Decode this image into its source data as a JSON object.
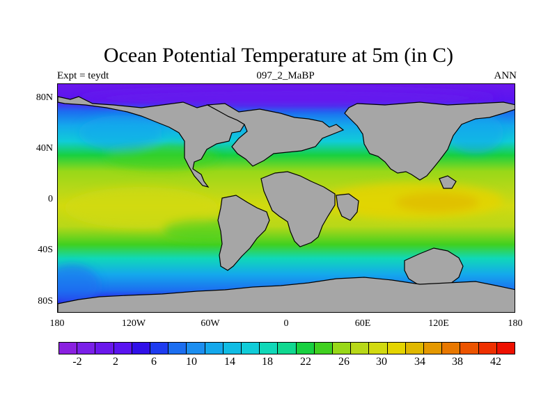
{
  "title": "Ocean Potential Temperature at 5m (in C)",
  "left_string": "Expt = teydt",
  "center_string": "097_2_MaBP",
  "right_string": "ANN",
  "lat_labels": [
    "80N",
    "40N",
    "0",
    "40S",
    "80S"
  ],
  "lon_labels": [
    "180",
    "120W",
    "60W",
    "0",
    "60E",
    "120E",
    "180"
  ],
  "colorbar": {
    "levels": [
      "-2",
      "2",
      "6",
      "10",
      "14",
      "18",
      "22",
      "26",
      "30",
      "34",
      "38",
      "42"
    ],
    "colors": [
      "#8a20e0",
      "#7a20e8",
      "#6a18ec",
      "#5a14f0",
      "#3010e8",
      "#1e3cf0",
      "#1c6ef0",
      "#1c8ef0",
      "#14a8ec",
      "#10bce4",
      "#10ccd8",
      "#10d8b8",
      "#10d890",
      "#18d040",
      "#40d020",
      "#98d818",
      "#b8d818",
      "#d2da10",
      "#e4d400",
      "#e0b800",
      "#e49800",
      "#e87800",
      "#ec5400",
      "#ee3000",
      "#ee1000"
    ]
  },
  "map": {
    "land_color": "#a6a6a6",
    "lon_range": [
      -180,
      180
    ],
    "lat_range": [
      -90,
      90
    ]
  }
}
